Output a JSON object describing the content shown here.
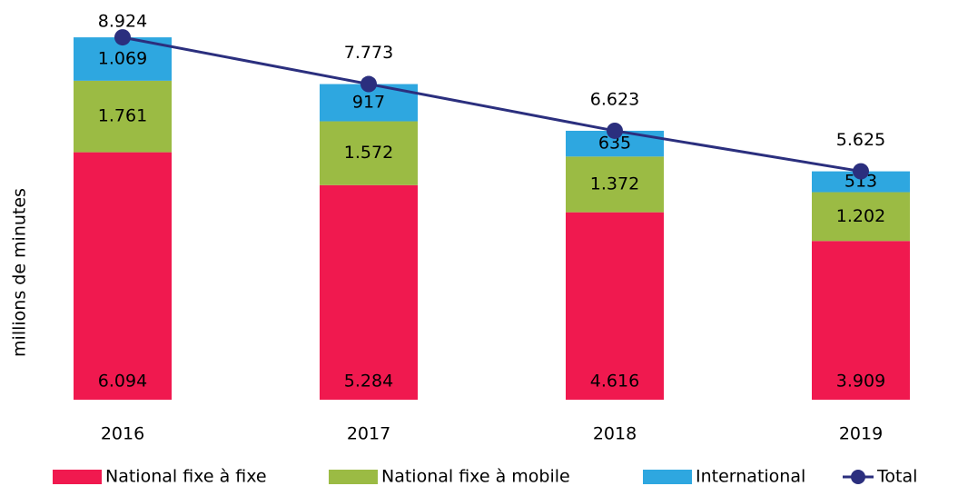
{
  "chart_data": {
    "type": "bar",
    "y_axis_label": "millions de minutes",
    "categories": [
      "2016",
      "2017",
      "2018",
      "2019"
    ],
    "stacked": true,
    "series": [
      {
        "name": "National fixe à fixe",
        "color": "#f0194f",
        "values": [
          6094,
          5284,
          4616,
          3909
        ],
        "value_labels": [
          "6.094",
          "5.284",
          "4.616",
          "3.909"
        ]
      },
      {
        "name": "National fixe à mobile",
        "color": "#9bbb44",
        "values": [
          1761,
          1572,
          1372,
          1202
        ],
        "value_labels": [
          "1.761",
          "1.572",
          "1.372",
          "1.202"
        ]
      },
      {
        "name": "International",
        "color": "#2ea7e0",
        "values": [
          1069,
          917,
          635,
          513
        ],
        "value_labels": [
          "1.069",
          "917",
          "635",
          "513"
        ]
      },
      {
        "name": "Total",
        "type": "line",
        "color": "#2b2f7e",
        "values": [
          8924,
          7773,
          6623,
          5625
        ],
        "value_labels": [
          "8.924",
          "7.773",
          "6.623",
          "5.625"
        ]
      }
    ]
  }
}
